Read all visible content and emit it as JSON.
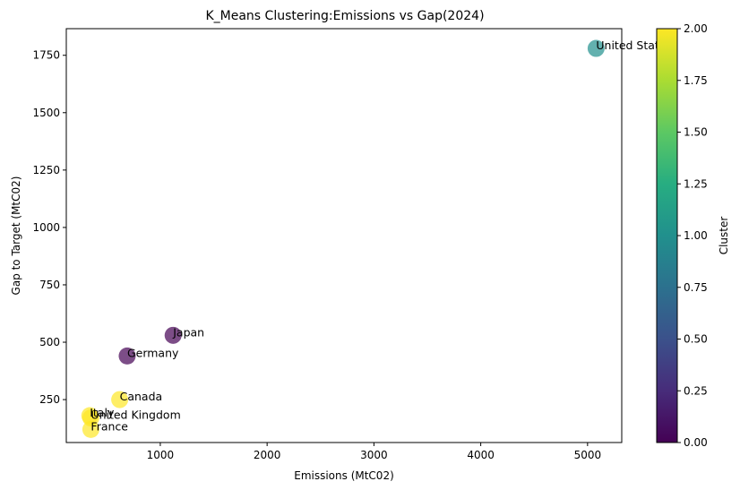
{
  "chart_data": {
    "type": "scatter",
    "title": "K_Means Clustering:Emissions vs Gap(2024)",
    "xlabel": "Emissions (MtC02)",
    "ylabel": "Gap to Target (MtC02)",
    "xlim": [
      120,
      5320
    ],
    "ylim": [
      63,
      1866
    ],
    "xticks": [
      1000,
      2000,
      3000,
      4000,
      5000
    ],
    "yticks": [
      250,
      500,
      750,
      1000,
      1250,
      1500,
      1750
    ],
    "grid": false,
    "points": [
      {
        "label": "United States",
        "x": 5080,
        "y": 1780,
        "cluster": 1
      },
      {
        "label": "Japan",
        "x": 1120,
        "y": 530,
        "cluster": 0
      },
      {
        "label": "Germany",
        "x": 690,
        "y": 440,
        "cluster": 0
      },
      {
        "label": "Canada",
        "x": 620,
        "y": 250,
        "cluster": 2
      },
      {
        "label": "Italy",
        "x": 340,
        "y": 180,
        "cluster": 2
      },
      {
        "label": "United Kingdom",
        "x": 350,
        "y": 170,
        "cluster": 2
      },
      {
        "label": "France",
        "x": 350,
        "y": 120,
        "cluster": 2
      }
    ],
    "colorbar": {
      "label": "Cluster",
      "range": [
        0,
        2
      ],
      "ticks": [
        "0.00",
        "0.25",
        "0.50",
        "0.75",
        "1.00",
        "1.25",
        "1.50",
        "1.75",
        "2.00"
      ],
      "colormap": "viridis",
      "cluster_colors": {
        "0": "#440154",
        "1": "#21908d",
        "2": "#fde725"
      },
      "point_alpha": 0.7
    }
  }
}
